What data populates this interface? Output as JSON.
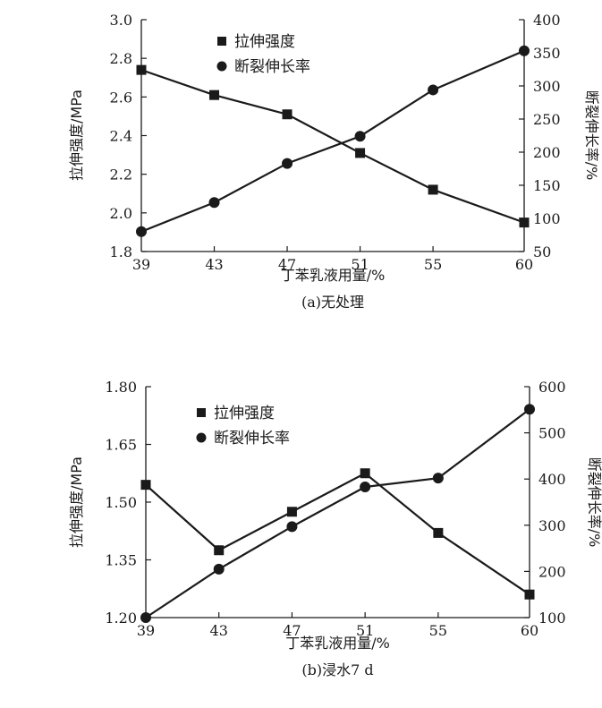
{
  "chart_data": [
    {
      "type": "line",
      "caption": "(a)无处理",
      "xlabel": "丁苯乳液用量/%",
      "ylabel_left": "拉伸强度/MPa",
      "ylabel_right": "断裂伸长率/%",
      "x": [
        39,
        43,
        47,
        51,
        55,
        60
      ],
      "x_tick_labels": [
        "39",
        "43",
        "47",
        "51",
        "55",
        "60"
      ],
      "ylim_left": [
        1.8,
        3.0
      ],
      "yticks_left": [
        "1.8",
        "2.0",
        "2.2",
        "2.4",
        "2.6",
        "2.8",
        "3.0"
      ],
      "ylim_right": [
        50,
        400
      ],
      "yticks_right": [
        "50",
        "100",
        "150",
        "200",
        "250",
        "300",
        "350",
        "400"
      ],
      "legend_position": "top-center",
      "grid": false,
      "series": [
        {
          "name": "拉伸强度",
          "axis": "left",
          "marker": "square",
          "values": [
            2.74,
            2.61,
            2.51,
            2.31,
            2.12,
            1.95
          ]
        },
        {
          "name": "断裂伸长率",
          "axis": "right",
          "marker": "circle",
          "values": [
            80,
            124,
            183,
            224,
            294,
            353
          ]
        }
      ]
    },
    {
      "type": "line",
      "caption": "(b)浸水7 d",
      "xlabel": "丁苯乳液用量/%",
      "ylabel_left": "拉伸强度/MPa",
      "ylabel_right": "断裂伸长率/%",
      "x": [
        39,
        43,
        47,
        51,
        55,
        60
      ],
      "x_tick_labels": [
        "39",
        "43",
        "47",
        "51",
        "55",
        "60"
      ],
      "ylim_left": [
        1.2,
        1.8
      ],
      "yticks_left": [
        "1.20",
        "1.35",
        "1.50",
        "1.65",
        "1.80"
      ],
      "ylim_right": [
        100,
        600
      ],
      "yticks_right": [
        "100",
        "200",
        "300",
        "400",
        "500",
        "600"
      ],
      "legend_position": "top-center",
      "grid": false,
      "series": [
        {
          "name": "拉伸强度",
          "axis": "left",
          "marker": "square",
          "values": [
            1.545,
            1.375,
            1.475,
            1.575,
            1.42,
            1.26
          ]
        },
        {
          "name": "断裂伸长率",
          "axis": "right",
          "marker": "circle",
          "values": [
            100,
            205,
            297,
            383,
            402,
            551
          ]
        }
      ]
    }
  ]
}
